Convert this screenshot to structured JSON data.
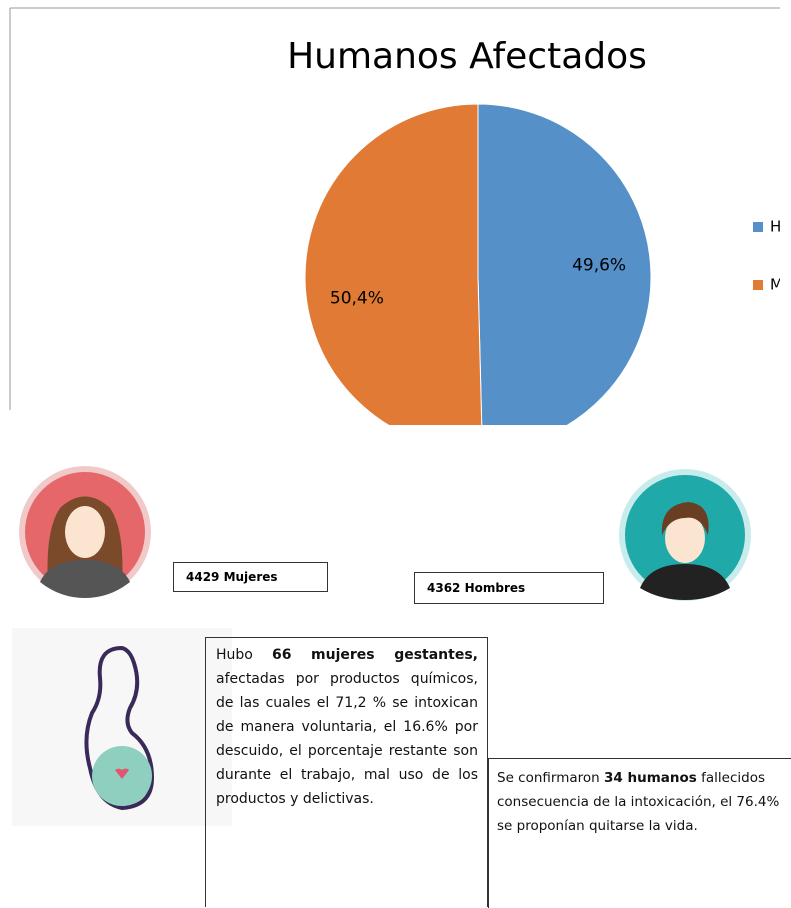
{
  "chart_data": {
    "type": "pie",
    "title": "Humanos Afectados",
    "categories": [
      "Hombres",
      "Mujeres"
    ],
    "values": [
      49.6,
      50.4
    ],
    "value_labels": [
      "49,6%",
      "50,4%"
    ],
    "colors": [
      "#5590c8",
      "#e07a34"
    ],
    "legend": "right"
  },
  "counts": {
    "women": "4429 Mujeres",
    "men": "4362 Hombres"
  },
  "pregnant": {
    "parts": [
      "Hubo ",
      "66 mujeres gestantes,",
      " afectadas por productos químicos, de las cuales el 71,2 % se intoxican de manera voluntaria, el 16.6% por descuido, el porcentaje restante son durante el trabajo, mal uso de los productos y delictivas."
    ]
  },
  "deaths": {
    "parts": [
      "Se confirmaron ",
      "34 humanos",
      " fallecidos consecuencia de la intoxicación, el 76.4% se proponían quitarse la vida."
    ]
  }
}
